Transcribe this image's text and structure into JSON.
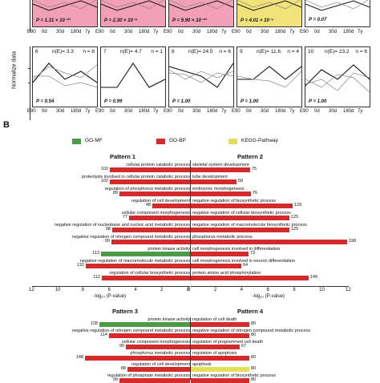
{
  "panel_label_b": "B",
  "ylabel": "Normalize data",
  "top_row": [
    {
      "p": "P = 1.31 × 10⁻²¹",
      "color": "#f2a0b8"
    },
    {
      "p": "P = 2.30 × 10⁻⁶",
      "color": "#f2a0b8"
    },
    {
      "p": "P = 9.90 × 10⁻²¹",
      "color": "#f2a0b8"
    },
    {
      "p": "P = 4.01 × 10⁻⁵",
      "color": "#f2e27a"
    },
    {
      "p": "P = 0.07",
      "color": "#ffffff"
    }
  ],
  "mid_row": [
    {
      "num": "6",
      "ne": "n(E)= 3.3",
      "n": "n = 8",
      "p": "P = 0.54"
    },
    {
      "num": "7",
      "ne": "n(E)= 4.7",
      "n": "n = 1",
      "p": "P = 0.99"
    },
    {
      "num": "8",
      "ne": "n(E)= 24.5",
      "n": "n = 6",
      "p": "P = 1.00"
    },
    {
      "num": "9",
      "ne": "n(E)= 11.6",
      "n": "n = 4",
      "p": "P = 1.00"
    },
    {
      "num": "10",
      "ne": "n(E)= 23.2",
      "n": "n = 6",
      "p": "P = 1.00"
    }
  ],
  "xticks": [
    "E90",
    "0d",
    "30d",
    "180d",
    "7y"
  ],
  "legend": [
    {
      "label": "GO-MF",
      "color": "#4a9a48"
    },
    {
      "label": "GO-BP",
      "color": "#d32b2b"
    },
    {
      "label": "KEGG-Pathway",
      "color": "#e3df5a"
    }
  ],
  "colors": {
    "mf": "#4a9a48",
    "bp": "#d32b2b",
    "kegg": "#e3df5a"
  },
  "pattern1": {
    "title": "Pattern 1",
    "bars": [
      {
        "label": "cellular protein catabolic process",
        "value": "102",
        "type": "bp"
      },
      {
        "label": "proteolysis involved in cellular protein catabolic process",
        "value": "102",
        "type": "bp"
      },
      {
        "label": "regulation of phosphorus metabolic process",
        "value": "89",
        "type": "bp"
      },
      {
        "label": "regulation of cell development",
        "value": "48",
        "type": "bp"
      },
      {
        "label": "cellular component morphogenesis",
        "value": "77",
        "type": "bp"
      },
      {
        "label": "negative regulation of nucleobase and nucleic acid metabolic process",
        "value": "98",
        "type": "bp"
      },
      {
        "label": "negative regulation of nitrogen compound metabolic process",
        "value": "99",
        "type": "bp"
      },
      {
        "label": "protein kinase activity",
        "value": "113",
        "type": "mf"
      },
      {
        "label": "negative regulation of macromolecule metabolic process",
        "value": "132",
        "type": "bp"
      },
      {
        "label": "regulation of cellular biosynthetic process",
        "value": "112",
        "type": "bp"
      }
    ],
    "ticks": [
      "12",
      "10",
      "8",
      "6",
      "4",
      "2",
      "0"
    ],
    "xlabel": "-log₁₀ (P-value)"
  },
  "pattern2": {
    "title": "Pattern 2",
    "bars": [
      {
        "label": "skeletal system development",
        "value": "75",
        "type": "bp"
      },
      {
        "label": "tube development",
        "value": "58",
        "type": "bp"
      },
      {
        "label": "embryonic morphogenesis",
        "value": "76",
        "type": "bp"
      },
      {
        "label": "negative regulation of biosynthetic process",
        "value": "129",
        "type": "bp"
      },
      {
        "label": "negative regulation of cellular biosynthetic process",
        "value": "125",
        "type": "bp"
      },
      {
        "label": "negative regulation of macromolecule biosynthetic process",
        "value": "125",
        "type": "bp"
      },
      {
        "label": "phosphorus metabolic process",
        "value": "198",
        "type": "bp"
      },
      {
        "label": "cell morphogenesis involved in differentiation",
        "value": "73",
        "type": "bp"
      },
      {
        "label": "cell morphogenesis involved in neuron differentiation",
        "value": "64",
        "type": "bp"
      },
      {
        "label": "protein amino acid phosphorylation",
        "value": "149",
        "type": "bp"
      }
    ],
    "ticks": [
      "0",
      "2",
      "4",
      "6",
      "8",
      "10",
      "12"
    ],
    "xlabel": "-log₁₀ (P-value)"
  },
  "pattern3": {
    "title": "Pattern 3",
    "bars": [
      {
        "label": "protein kinase activity",
        "value": "128",
        "type": "mf"
      },
      {
        "label": "negative regulation of nitrogen compound metabolic process",
        "value": "114",
        "type": "bp"
      },
      {
        "label": "cellular component morphogenesis",
        "value": "90",
        "type": "bp"
      },
      {
        "label": "phosphorus metabolic process",
        "value": "148",
        "type": "bp"
      },
      {
        "label": "regulation of cell development",
        "value": "88",
        "type": "bp"
      },
      {
        "label": "regulation of phosphate metabolic process",
        "value": "99",
        "type": "bp"
      }
    ]
  },
  "pattern4": {
    "title": "Pattern 4",
    "bars": [
      {
        "label": "regulation of cell death",
        "value": "80",
        "type": "bp"
      },
      {
        "label": "negative regulation of nitrogen compound metabolic process",
        "value": "80",
        "type": "bp"
      },
      {
        "label": "regulation of programmed cell death",
        "value": "67",
        "type": "bp"
      },
      {
        "label": "regulation of apoptosis",
        "value": "80",
        "type": "bp"
      },
      {
        "label": "apoptosis",
        "value": "80",
        "type": "kegg"
      },
      {
        "label": "negative regulation of biosynthetic process",
        "value": "80",
        "type": "bp"
      }
    ]
  }
}
